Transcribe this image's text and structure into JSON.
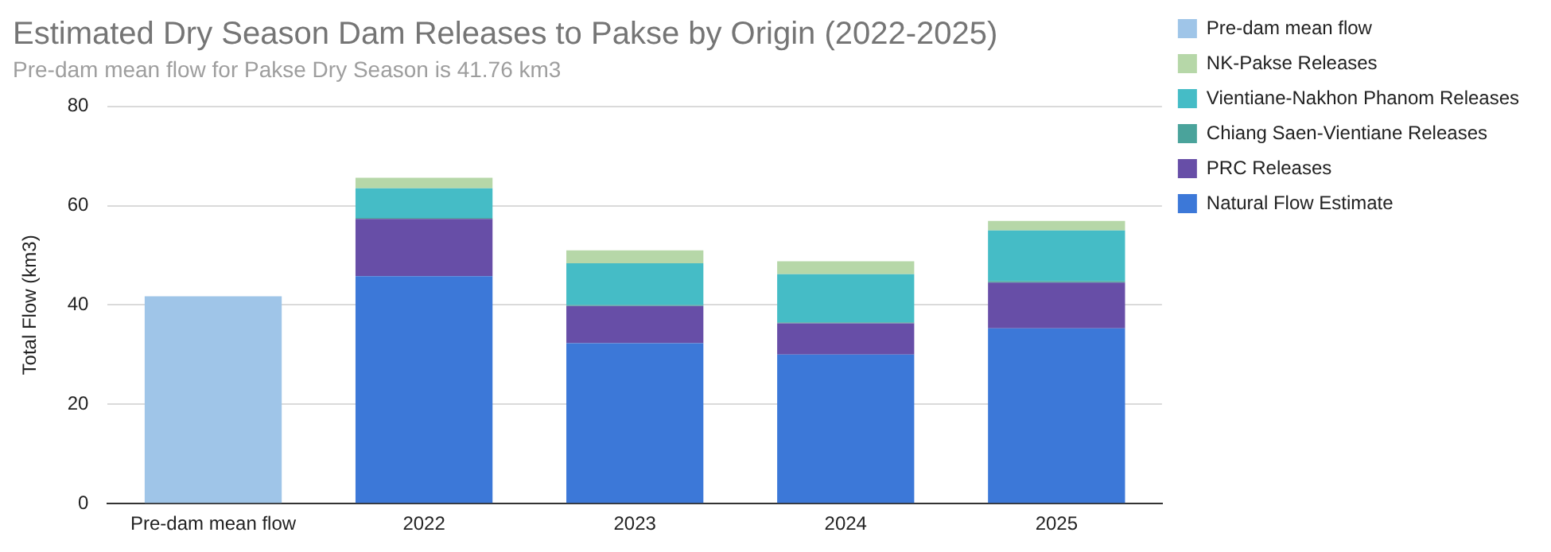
{
  "chart_data": {
    "type": "bar",
    "title": "Estimated Dry Season Dam Releases to Pakse by Origin (2022-2025)",
    "subtitle": "Pre-dam mean flow for Pakse Dry Season is 41.76 km3",
    "ylabel": "Total Flow (km3)",
    "categories": [
      "Pre-dam mean flow",
      "2022",
      "2023",
      "2024",
      "2025"
    ],
    "stacked": true,
    "ylim": [
      0,
      80
    ],
    "yticks": [
      0,
      20,
      40,
      60,
      80
    ],
    "grid": "y",
    "legend": "right",
    "series": [
      {
        "name": "Pre-dam mean flow",
        "color": "#9fc5e8",
        "values": [
          41.76,
          null,
          null,
          null,
          null
        ]
      },
      {
        "name": "Natural Flow Estimate",
        "color": "#3c78d8",
        "values": [
          null,
          45.8,
          32.3,
          30.0,
          35.3
        ]
      },
      {
        "name": "PRC Releases",
        "color": "#674ea7",
        "values": [
          null,
          11.5,
          7.5,
          6.3,
          9.2
        ]
      },
      {
        "name": "Chiang Saen-Vientiane Releases",
        "color": "#4aa39b",
        "values": [
          null,
          0.2,
          0.2,
          0.2,
          0.3
        ]
      },
      {
        "name": "Vientiane-Nakhon Phanom Releases",
        "color": "#45bcc6",
        "values": [
          null,
          6.0,
          8.4,
          9.7,
          10.2
        ]
      },
      {
        "name": "NK-Pakse Releases",
        "color": "#b6d7a8",
        "values": [
          null,
          2.1,
          2.6,
          2.6,
          1.9
        ]
      }
    ]
  }
}
